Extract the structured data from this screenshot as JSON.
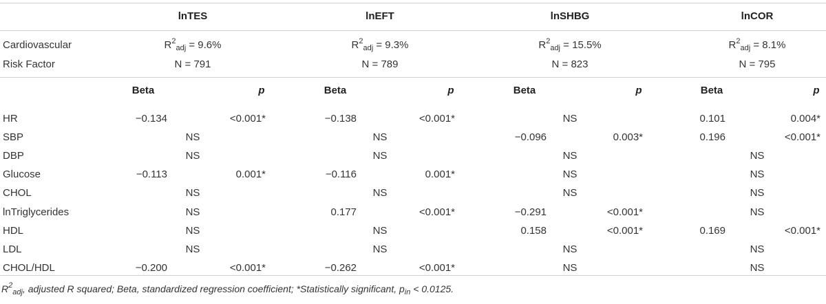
{
  "groups": [
    {
      "name": "lnTES",
      "r2_value": " = 9.6%",
      "n": "N = 791"
    },
    {
      "name": "lnEFT",
      "r2_value": " = 9.3%",
      "n": "N = 789"
    },
    {
      "name": "lnSHBG",
      "r2_value": " = 15.5%",
      "n": "N = 823"
    },
    {
      "name": "lnCOR",
      "r2_value": " = 8.1%",
      "n": "N = 795"
    }
  ],
  "r2_symbol": "R",
  "r2_sup": "2",
  "r2_sub": "adj",
  "row_label_1": "Cardiovascular",
  "row_label_2": "Risk Factor",
  "beta_label": "Beta",
  "p_label": "p",
  "rows": [
    {
      "label": "HR",
      "cells": [
        {
          "beta": "−0.134",
          "p": "<0.001*"
        },
        {
          "beta": "−0.138",
          "p": "<0.001*"
        },
        {
          "ns": "NS"
        },
        {
          "beta": "0.101",
          "p": "0.004*"
        }
      ]
    },
    {
      "label": "SBP",
      "cells": [
        {
          "ns": "NS"
        },
        {
          "ns": "NS"
        },
        {
          "beta": "−0.096",
          "p": "0.003*"
        },
        {
          "beta": "0.196",
          "p": "<0.001*"
        }
      ]
    },
    {
      "label": "DBP",
      "cells": [
        {
          "ns": "NS"
        },
        {
          "ns": "NS"
        },
        {
          "ns": "NS"
        },
        {
          "ns": "NS"
        }
      ]
    },
    {
      "label": "Glucose",
      "cells": [
        {
          "beta": "−0.113",
          "p": "0.001*"
        },
        {
          "beta": "−0.116",
          "p": "0.001*"
        },
        {
          "ns": "NS"
        },
        {
          "ns": "NS"
        }
      ]
    },
    {
      "label": "CHOL",
      "cells": [
        {
          "ns": "NS"
        },
        {
          "ns": "NS"
        },
        {
          "ns": "NS"
        },
        {
          "ns": "NS"
        }
      ]
    },
    {
      "label": "lnTriglycerides",
      "cells": [
        {
          "ns": "NS"
        },
        {
          "beta": "0.177",
          "p": "<0.001*"
        },
        {
          "beta": "−0.291",
          "p": "<0.001*"
        },
        {
          "ns": "NS"
        }
      ]
    },
    {
      "label": "HDL",
      "cells": [
        {
          "ns": "NS"
        },
        {
          "ns": "NS"
        },
        {
          "beta": "0.158",
          "p": "<0.001*"
        },
        {
          "beta": "0.169",
          "p": "<0.001*"
        }
      ]
    },
    {
      "label": "LDL",
      "cells": [
        {
          "ns": "NS"
        },
        {
          "ns": "NS"
        },
        {
          "ns": "NS"
        },
        {
          "ns": "NS"
        }
      ]
    },
    {
      "label": "CHOL/HDL",
      "cells": [
        {
          "beta": "−0.200",
          "p": "<0.001*"
        },
        {
          "beta": "−0.262",
          "p": "<0.001*"
        },
        {
          "ns": "NS"
        },
        {
          "ns": "NS"
        }
      ]
    }
  ],
  "footnote": {
    "r2_symbol": "R",
    "r2_sup": "2",
    "r2_sub": "adj",
    "text_main": ", adjusted R squared; Beta, standardized regression coefficient; *Statistically significant, p",
    "p_sub": "in",
    "text_end": " < 0.0125."
  }
}
